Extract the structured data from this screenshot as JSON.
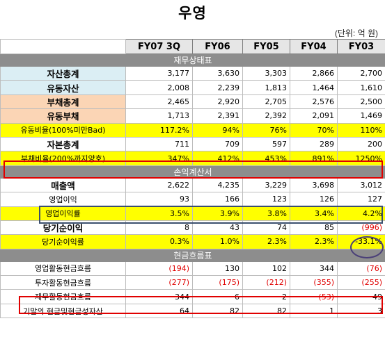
{
  "title": "우영",
  "unit_note": "(단위: 억 원)",
  "columns": [
    "FY07 3Q",
    "FY06",
    "FY05",
    "FY04",
    "FY03"
  ],
  "sections": [
    {
      "name": "재무상태표",
      "rows": [
        {
          "label": "자산총계",
          "values": [
            "3,177",
            "3,630",
            "3,303",
            "2,866",
            "2,700"
          ]
        },
        {
          "label": "유동자산",
          "values": [
            "2,008",
            "2,239",
            "1,813",
            "1,464",
            "1,610"
          ]
        },
        {
          "label": "부채총계",
          "values": [
            "2,465",
            "2,920",
            "2,705",
            "2,576",
            "2,500"
          ]
        },
        {
          "label": "유동부채",
          "values": [
            "1,713",
            "2,391",
            "2,392",
            "2,091",
            "1,469"
          ]
        },
        {
          "label": "유동비율(100%미만Bad)",
          "values": [
            "117.2%",
            "94%",
            "76%",
            "70%",
            "110%"
          ]
        },
        {
          "label": "자본총계",
          "values": [
            "711",
            "709",
            "597",
            "289",
            "200"
          ]
        },
        {
          "label": "부채비율(200%까지양호)",
          "values": [
            "347%",
            "412%",
            "453%",
            "891%",
            "1250%"
          ]
        }
      ]
    },
    {
      "name": "손익계산서",
      "rows": [
        {
          "label": "매출액",
          "values": [
            "2,622",
            "4,235",
            "3,229",
            "3,698",
            "3,012"
          ]
        },
        {
          "label": "영업이익",
          "values": [
            "93",
            "166",
            "123",
            "126",
            "127"
          ]
        },
        {
          "label": "영업이익률",
          "values": [
            "3.5%",
            "3.9%",
            "3.8%",
            "3.4%",
            "4.2%"
          ]
        },
        {
          "label": "당기순이익",
          "values": [
            "8",
            "43",
            "74",
            "85",
            "(996)"
          ]
        },
        {
          "label": "당기순이익률",
          "values": [
            "0.3%",
            "1.0%",
            "2.3%",
            "2.3%",
            "-33.1%"
          ]
        }
      ]
    },
    {
      "name": "현금흐름표",
      "rows": [
        {
          "label": "영업활동현금흐름",
          "values": [
            "(194)",
            "130",
            "102",
            "344",
            "(76)"
          ]
        },
        {
          "label": "투자활동현금흐름",
          "values": [
            "(277)",
            "(175)",
            "(212)",
            "(355)",
            "(255)"
          ]
        },
        {
          "label": "재무활동현금흐름",
          "values": [
            "344",
            "6",
            "2",
            "(53)",
            "49"
          ]
        },
        {
          "label": "기말의 현금및현금성자산",
          "values": [
            "64",
            "82",
            "82",
            "1",
            "3"
          ]
        }
      ]
    }
  ],
  "colors": {
    "section_header": "#8d8d8d",
    "highlight_yellow": "#ffff00",
    "label_blue": "#dbeef4",
    "label_peach": "#fbd5b5",
    "negative_red": "#e00000",
    "annotation_red": "#e00000",
    "annotation_navy": "#3b4f6e"
  }
}
